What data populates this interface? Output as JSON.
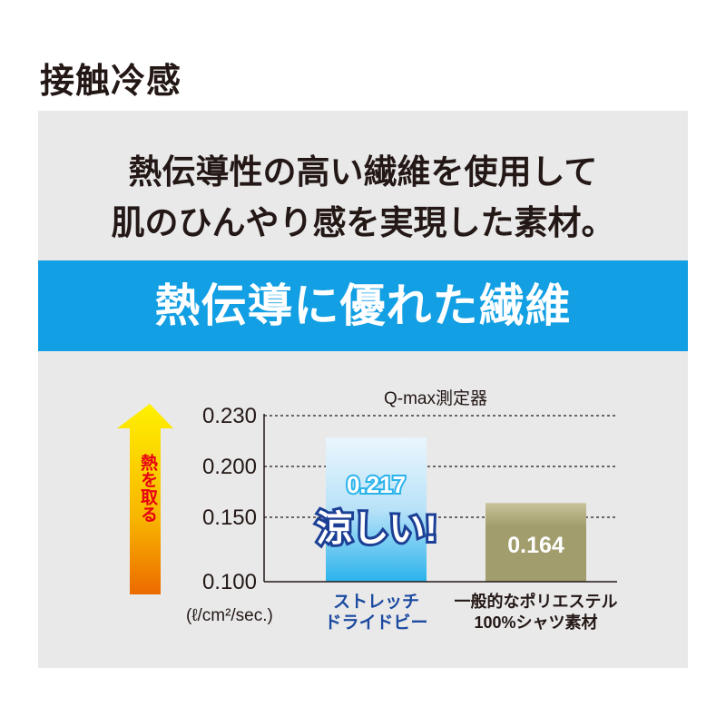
{
  "page_title": "接触冷感",
  "lead_lines": [
    "熱伝導性の高い繊維を使用して",
    "肌のひんやり感を実現した素材。"
  ],
  "banner": "熱伝導に優れた繊維",
  "colors": {
    "banner": "#139fe3",
    "panel": "#e9e9ea",
    "bar_stretch": "#2bb3ec",
    "bar_polyester": "#a19d6d",
    "category_highlight": "#1b4aa0"
  },
  "chart_data": {
    "type": "bar",
    "title": "Q-max測定器",
    "ylabel": "(ℓ/cm²/sec.)",
    "arrow_label": "熱を取る",
    "yticks": [
      "0.100",
      "0.150",
      "0.200",
      "0.230"
    ],
    "ylim": [
      0.1,
      0.23
    ],
    "grid": "dotted horizontal",
    "categories": [
      [
        "ストレッチ",
        "ドライドビー"
      ],
      [
        "一般的なポリエステル",
        "100%シャツ素材"
      ]
    ],
    "values": [
      0.217,
      0.164
    ],
    "value_labels": [
      "0.217",
      "0.164"
    ],
    "callout": "涼しい!"
  }
}
